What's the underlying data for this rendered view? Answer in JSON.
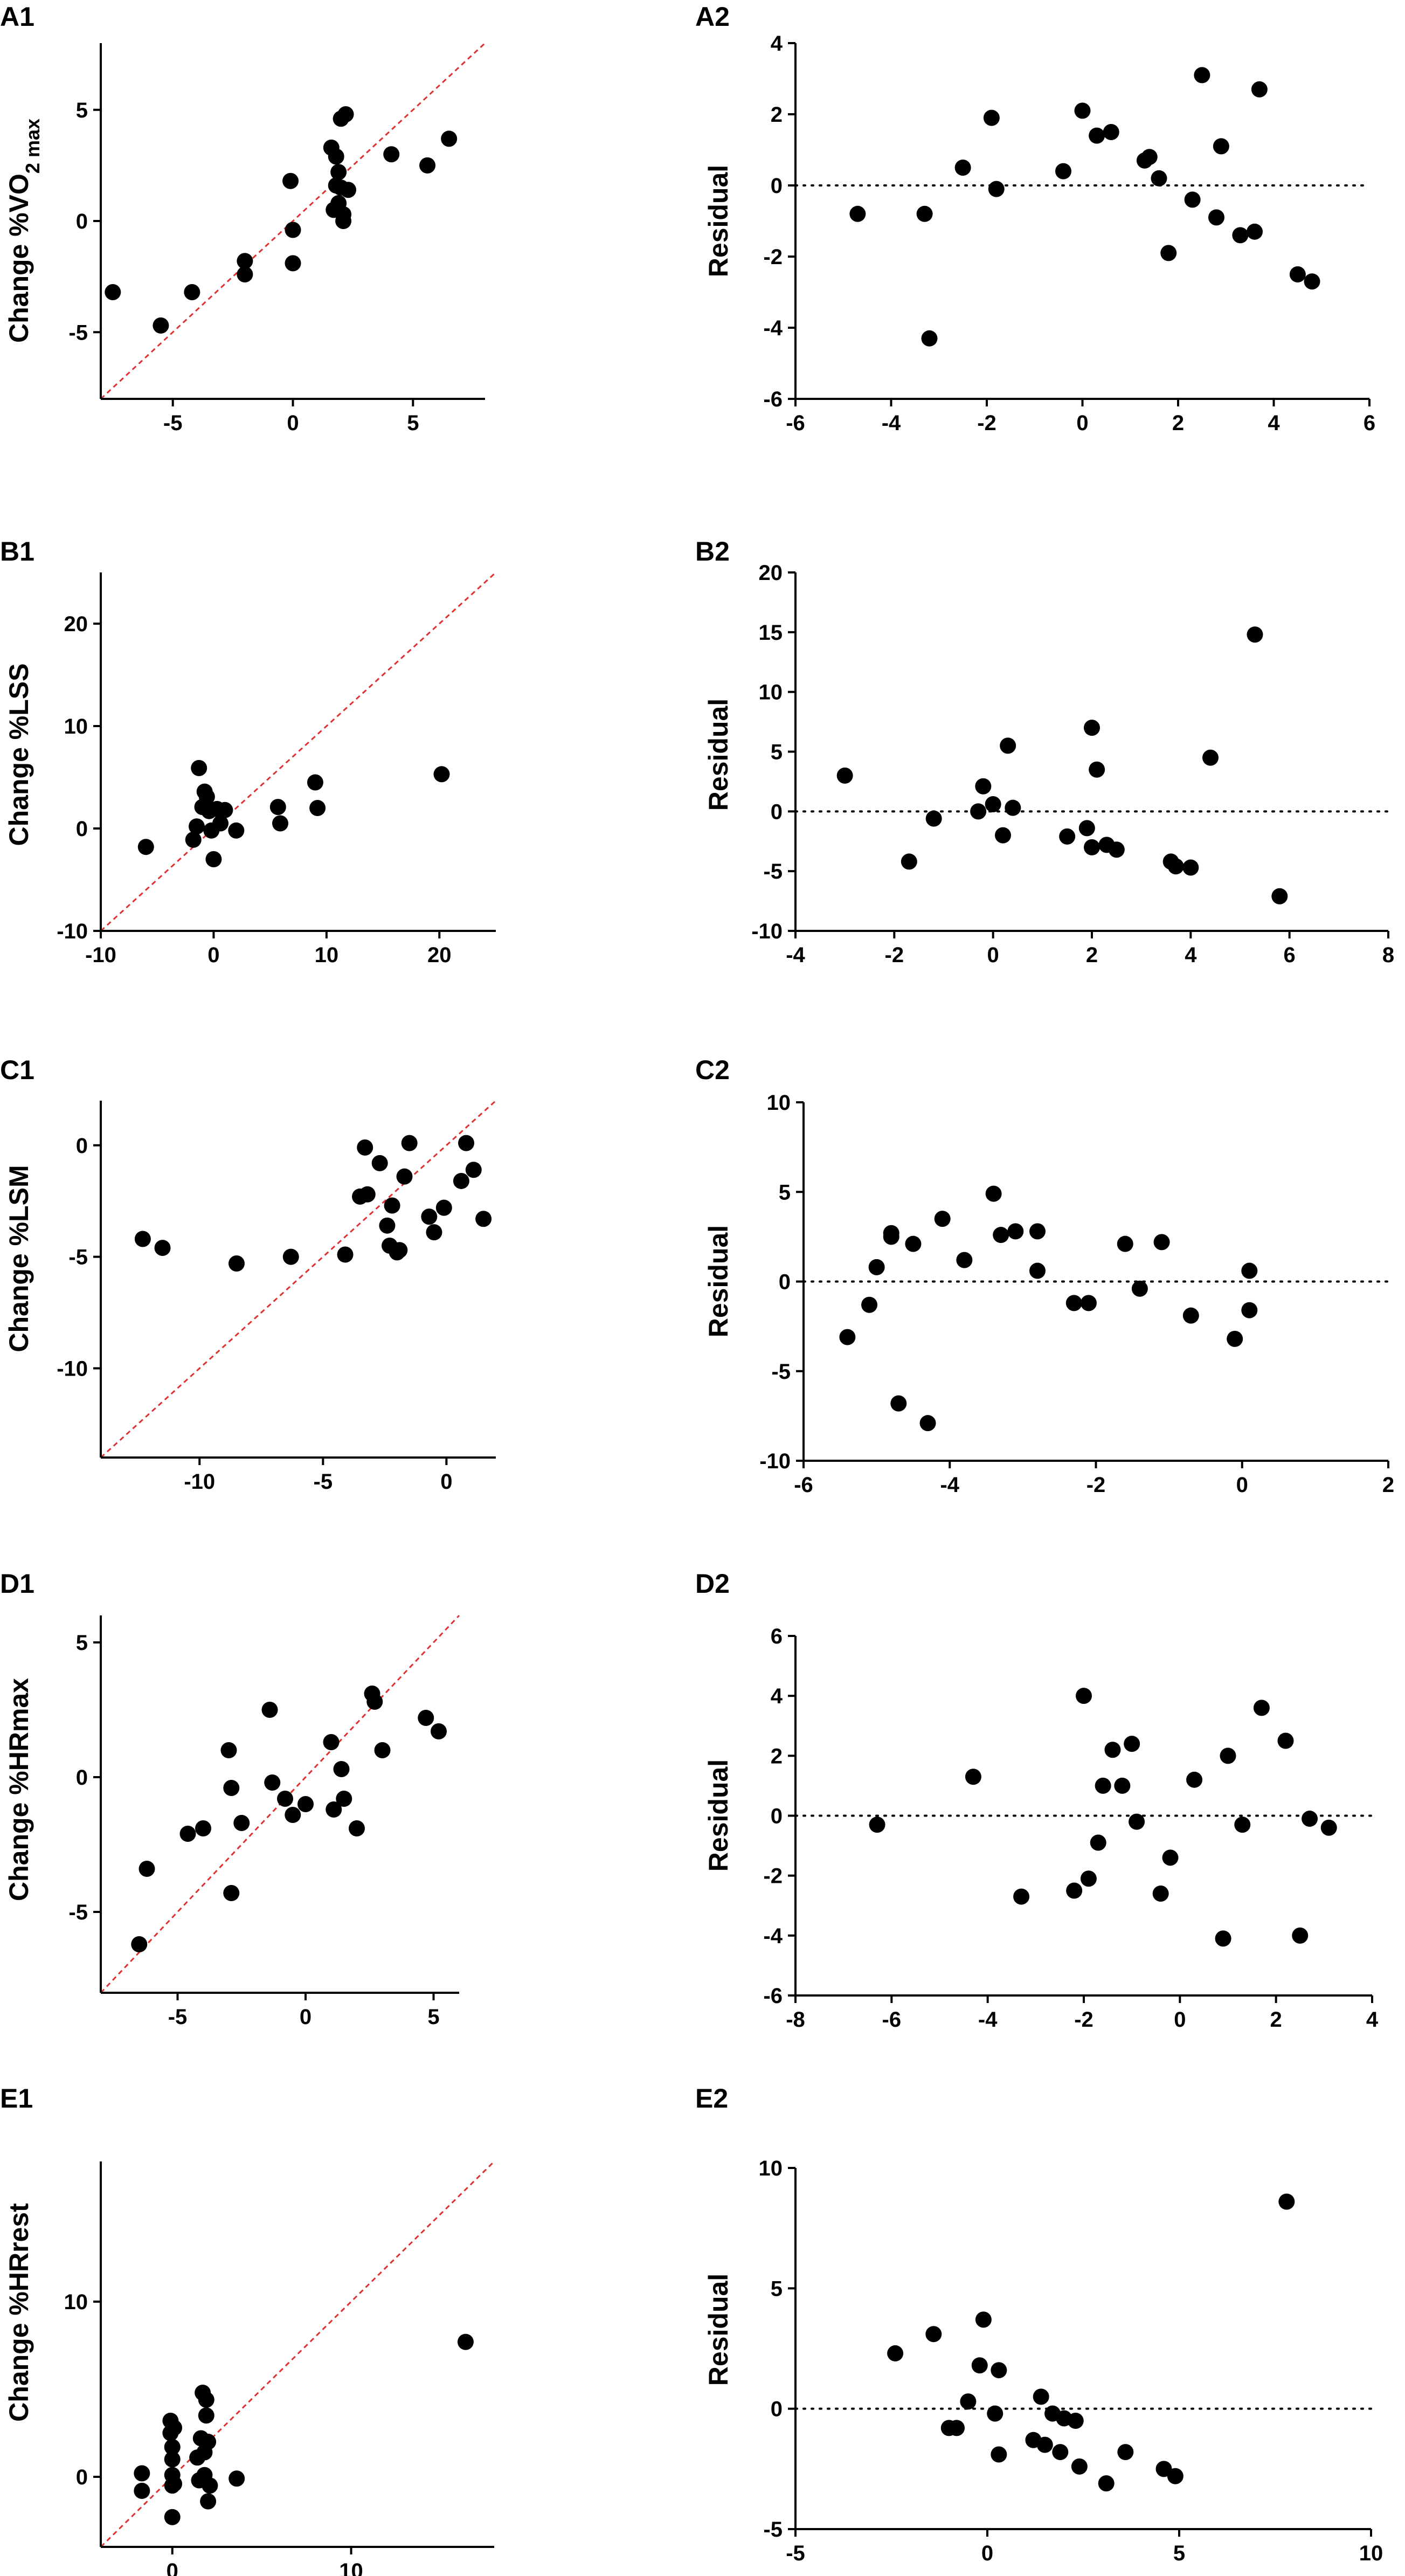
{
  "chart_data": [
    {
      "panel": "A1",
      "type": "scatter",
      "title": "A1",
      "ylabel": "Change %VO",
      "ylabel_sub": "2 max",
      "xlabel": "",
      "xlim": [
        -8,
        8
      ],
      "ylim": [
        -8,
        8
      ],
      "xticks": [
        -5,
        0,
        5
      ],
      "yticks": [
        -5,
        0,
        5
      ],
      "reference_line": {
        "type": "identity",
        "color": "#e03030",
        "style": "dashed"
      },
      "x": [
        -7.5,
        -5.5,
        -4.2,
        -2.0,
        -2.0,
        -0.1,
        0.0,
        0.0,
        1.6,
        1.7,
        1.8,
        1.8,
        1.9,
        1.9,
        2.0,
        2.0,
        2.1,
        2.1,
        2.2,
        2.3,
        4.1,
        5.6,
        6.5
      ],
      "y": [
        -3.2,
        -4.7,
        -3.2,
        -1.8,
        -2.4,
        1.8,
        -0.4,
        -1.9,
        3.3,
        0.5,
        2.9,
        1.6,
        2.2,
        0.8,
        4.6,
        1.5,
        0.0,
        0.3,
        4.8,
        1.4,
        3.0,
        2.5,
        3.7
      ]
    },
    {
      "panel": "A2",
      "type": "scatter",
      "title": "A2",
      "ylabel": "Residual",
      "xlabel": "",
      "xlim": [
        -6,
        6
      ],
      "ylim": [
        -6,
        4
      ],
      "xticks": [
        -6,
        -4,
        -2,
        0,
        2,
        4,
        6
      ],
      "yticks": [
        -6,
        -4,
        -2,
        0,
        2,
        4
      ],
      "reference_line": {
        "type": "zero",
        "color": "#000000",
        "style": "dotted"
      },
      "x": [
        -4.7,
        -3.3,
        -3.2,
        -2.5,
        -1.9,
        -1.8,
        -0.4,
        0.0,
        0.3,
        0.6,
        1.3,
        1.4,
        1.6,
        1.8,
        2.3,
        2.5,
        2.8,
        2.9,
        3.3,
        3.6,
        3.7,
        4.5,
        4.8
      ],
      "y": [
        -0.8,
        -0.8,
        -4.3,
        0.5,
        1.9,
        -0.1,
        0.4,
        2.1,
        1.4,
        1.5,
        0.7,
        0.8,
        0.2,
        -1.9,
        -0.4,
        3.1,
        -0.9,
        1.1,
        -1.4,
        -1.3,
        2.7,
        -2.5,
        -2.7
      ]
    },
    {
      "panel": "B1",
      "type": "scatter",
      "title": "B1",
      "ylabel": "Change %LSS",
      "xlabel": "",
      "xlim": [
        -10,
        25
      ],
      "ylim": [
        -10,
        25
      ],
      "xticks": [
        -10,
        0,
        10,
        20
      ],
      "yticks": [
        -10,
        0,
        10,
        20
      ],
      "reference_line": {
        "type": "identity",
        "color": "#e03030",
        "style": "dashed"
      },
      "x": [
        -6.0,
        -1.8,
        -1.5,
        -1.3,
        -1.0,
        -0.8,
        -0.6,
        -0.4,
        -0.2,
        0.0,
        0.3,
        0.6,
        1.0,
        2.0,
        5.7,
        5.9,
        9.0,
        9.2,
        20.2
      ],
      "y": [
        -1.8,
        -1.1,
        0.2,
        5.9,
        2.1,
        3.6,
        3.1,
        1.7,
        -0.2,
        -3.0,
        1.9,
        0.5,
        1.8,
        -0.2,
        2.1,
        0.5,
        4.5,
        2.0,
        5.3
      ]
    },
    {
      "panel": "B2",
      "type": "scatter",
      "title": "B2",
      "ylabel": "Residual",
      "xlabel": "",
      "xlim": [
        -4,
        8
      ],
      "ylim": [
        -10,
        20
      ],
      "xticks": [
        -4,
        -2,
        0,
        2,
        4,
        6,
        8
      ],
      "yticks": [
        -10,
        -5,
        0,
        5,
        10,
        15,
        20
      ],
      "reference_line": {
        "type": "zero",
        "color": "#000000",
        "style": "dotted"
      },
      "x": [
        -3.0,
        -1.7,
        -1.2,
        -0.3,
        -0.2,
        0.0,
        0.2,
        0.3,
        0.4,
        1.5,
        1.9,
        2.0,
        2.0,
        2.1,
        2.3,
        2.5,
        3.6,
        3.7,
        4.0,
        4.4,
        5.3,
        5.8
      ],
      "y": [
        3.0,
        -4.2,
        -0.6,
        0.0,
        2.1,
        0.6,
        -2.0,
        5.5,
        0.3,
        -2.1,
        -1.4,
        -3.0,
        7.0,
        3.5,
        -2.8,
        -3.2,
        -4.2,
        -4.6,
        -4.7,
        4.5,
        14.8,
        -7.1
      ]
    },
    {
      "panel": "C1",
      "type": "scatter",
      "title": "C1",
      "ylabel": "Change %LSM",
      "xlabel": "",
      "xlim": [
        -14,
        2
      ],
      "ylim": [
        -14,
        2
      ],
      "xticks": [
        -10,
        -5,
        0
      ],
      "yticks": [
        -10,
        -5,
        0
      ],
      "reference_line": {
        "type": "identity",
        "color": "#e03030",
        "style": "dashed"
      },
      "x": [
        -12.3,
        -11.5,
        -8.5,
        -6.3,
        -4.1,
        -3.5,
        -3.3,
        -3.2,
        -2.7,
        -2.4,
        -2.3,
        -2.2,
        -2.0,
        -1.9,
        -1.7,
        -1.5,
        -0.7,
        -0.5,
        -0.1,
        0.6,
        0.8,
        1.1,
        1.5
      ],
      "y": [
        -4.2,
        -4.6,
        -5.3,
        -5.0,
        -4.9,
        -2.3,
        -0.1,
        -2.2,
        -0.8,
        -3.6,
        -4.5,
        -2.7,
        -4.8,
        -4.7,
        -1.4,
        0.1,
        -3.2,
        -3.9,
        -2.8,
        -1.6,
        0.1,
        -1.1,
        -3.3
      ]
    },
    {
      "panel": "C2",
      "type": "scatter",
      "title": "C2",
      "ylabel": "Residual",
      "xlabel": "",
      "xlim": [
        -6,
        2
      ],
      "ylim": [
        -10,
        10
      ],
      "xticks": [
        -6,
        -4,
        -2,
        0,
        2
      ],
      "yticks": [
        -10,
        -5,
        0,
        5,
        10
      ],
      "reference_line": {
        "type": "zero",
        "color": "#000000",
        "style": "dotted"
      },
      "x": [
        -5.4,
        -5.1,
        -5.0,
        -4.8,
        -4.8,
        -4.7,
        -4.5,
        -4.3,
        -4.1,
        -3.8,
        -3.4,
        -3.3,
        -3.1,
        -2.8,
        -2.8,
        -2.3,
        -2.1,
        -1.6,
        -1.4,
        -1.1,
        -0.7,
        -0.1,
        0.1,
        0.1
      ],
      "y": [
        -3.1,
        -1.3,
        0.8,
        2.7,
        2.5,
        -6.8,
        2.1,
        -7.9,
        3.5,
        1.2,
        4.9,
        2.6,
        2.8,
        0.6,
        2.8,
        -1.2,
        -1.2,
        2.1,
        -0.4,
        2.2,
        -1.9,
        -3.2,
        0.6,
        -1.6
      ]
    },
    {
      "panel": "D1",
      "type": "scatter",
      "title": "D1",
      "ylabel": "Change %HRmax",
      "xlabel": "",
      "xlim": [
        -8,
        6
      ],
      "ylim": [
        -8,
        6
      ],
      "xticks": [
        -5,
        0,
        5
      ],
      "yticks": [
        -5,
        0,
        5
      ],
      "reference_line": {
        "type": "identity",
        "color": "#e03030",
        "style": "dashed"
      },
      "x": [
        -6.5,
        -6.2,
        -4.6,
        -4.0,
        -3.0,
        -2.9,
        -2.9,
        -2.5,
        -1.4,
        -1.3,
        -0.8,
        -0.5,
        0.0,
        1.0,
        1.1,
        1.4,
        1.5,
        2.0,
        2.6,
        2.7,
        3.0,
        4.7,
        5.2
      ],
      "y": [
        -6.2,
        -3.4,
        -2.1,
        -1.9,
        1.0,
        -4.3,
        -0.4,
        -1.7,
        2.5,
        -0.2,
        -0.8,
        -1.4,
        -1.0,
        1.3,
        -1.2,
        0.3,
        -0.8,
        -1.9,
        3.1,
        2.8,
        1.0,
        2.2,
        1.7
      ]
    },
    {
      "panel": "D2",
      "type": "scatter",
      "title": "D2",
      "ylabel": "Residual",
      "xlabel": "",
      "xlim": [
        -8,
        4
      ],
      "ylim": [
        -6,
        6
      ],
      "xticks": [
        -8,
        -6,
        -4,
        -2,
        0,
        2,
        4
      ],
      "yticks": [
        -6,
        -4,
        -2,
        0,
        2,
        4,
        6
      ],
      "reference_line": {
        "type": "zero",
        "color": "#000000",
        "style": "dotted"
      },
      "x": [
        -6.3,
        -4.3,
        -3.3,
        -2.2,
        -2.0,
        -1.9,
        -1.7,
        -1.6,
        -1.4,
        -1.2,
        -1.0,
        -0.9,
        -0.4,
        -0.2,
        0.3,
        0.9,
        1.0,
        1.3,
        1.7,
        2.2,
        2.5,
        2.7,
        3.1
      ],
      "y": [
        -0.3,
        1.3,
        -2.7,
        -2.5,
        4.0,
        -2.1,
        -0.9,
        1.0,
        2.2,
        1.0,
        2.4,
        -0.2,
        -2.6,
        -1.4,
        1.2,
        -4.1,
        2.0,
        -0.3,
        3.6,
        2.5,
        -4.0,
        -0.1,
        -0.4
      ]
    },
    {
      "panel": "E1",
      "type": "scatter",
      "title": "E1",
      "ylabel": "Change %HRrest",
      "xlabel": "",
      "xlim": [
        -4,
        18
      ],
      "ylim": [
        -4,
        18
      ],
      "xticks": [
        0,
        10
      ],
      "yticks": [
        0,
        10
      ],
      "reference_line": {
        "type": "identity",
        "color": "#e03030",
        "style": "dashed"
      },
      "x": [
        -1.7,
        -1.7,
        -0.1,
        -0.1,
        0.0,
        0.0,
        0.0,
        0.0,
        0.0,
        0.1,
        0.1,
        1.4,
        1.5,
        1.6,
        1.7,
        1.8,
        1.8,
        1.9,
        1.9,
        2.0,
        2.0,
        2.1,
        3.6,
        16.4
      ],
      "y": [
        -0.8,
        0.2,
        3.2,
        2.5,
        1.7,
        0.1,
        -0.5,
        -2.3,
        1.0,
        2.8,
        -0.4,
        1.1,
        -0.2,
        2.2,
        4.8,
        1.4,
        0.1,
        4.4,
        3.5,
        2.0,
        -1.4,
        -0.5,
        -0.1,
        7.7
      ]
    },
    {
      "panel": "E2",
      "type": "scatter",
      "title": "E2",
      "ylabel": "Residual",
      "xlabel": "",
      "xlim": [
        -5,
        10
      ],
      "ylim": [
        -5,
        10
      ],
      "xticks": [
        -5,
        0,
        5,
        10
      ],
      "yticks": [
        -5,
        0,
        5,
        10
      ],
      "reference_line": {
        "type": "zero",
        "color": "#000000",
        "style": "dotted"
      },
      "x": [
        -2.4,
        -1.4,
        -1.0,
        -0.8,
        -0.5,
        -0.2,
        -0.1,
        0.2,
        0.3,
        0.3,
        1.2,
        1.4,
        1.5,
        1.7,
        1.9,
        2.0,
        2.3,
        2.4,
        3.1,
        3.6,
        4.6,
        4.9,
        7.8
      ],
      "y": [
        2.3,
        3.1,
        -0.8,
        -0.8,
        0.3,
        1.8,
        3.7,
        -0.2,
        1.6,
        -1.9,
        -1.3,
        0.5,
        -1.5,
        -0.2,
        -1.8,
        -0.4,
        -0.5,
        -2.4,
        -3.1,
        -1.8,
        -2.5,
        -2.8,
        8.6
      ]
    }
  ]
}
